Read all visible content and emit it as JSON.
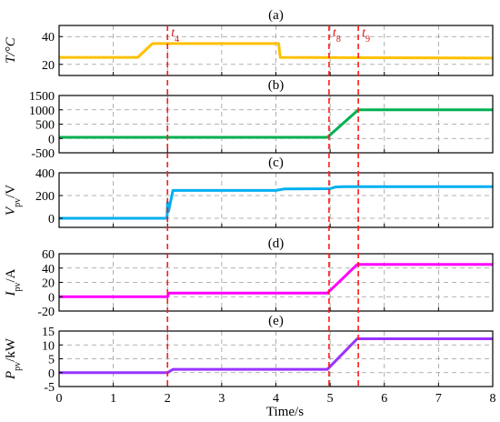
{
  "chart_data": {
    "type": "line",
    "xlabel": "Time/s",
    "xlim": [
      0,
      8
    ],
    "xticks": [
      0,
      1,
      2,
      3,
      4,
      5,
      6,
      7,
      8
    ],
    "vlines": [
      {
        "x": 2.0,
        "label": "t",
        "sub": "4"
      },
      {
        "x": 4.98,
        "label": "t",
        "sub": "8"
      },
      {
        "x": 5.52,
        "label": "t",
        "sub": "9"
      }
    ],
    "panels": [
      {
        "title": "(a)",
        "ylabel": "T/°C",
        "ylim": [
          12,
          48
        ],
        "yticks": [
          20,
          40
        ],
        "color": "#ffc000",
        "series": {
          "x": [
            0,
            1.45,
            1.72,
            4.05,
            4.08,
            8.0
          ],
          "y": [
            25,
            25,
            35,
            35,
            25,
            24.5
          ]
        }
      },
      {
        "title": "(b)",
        "ylabel": "",
        "ylim": [
          -500,
          1500
        ],
        "yticks": [
          -500,
          0,
          500,
          1000,
          1500
        ],
        "color": "#00b050",
        "series": {
          "x": [
            0,
            4.95,
            5.52,
            8.0
          ],
          "y": [
            40,
            40,
            1000,
            1000
          ]
        }
      },
      {
        "title": "(c)",
        "ylabel": "V",
        "ylabel_sub": "pv",
        "ylabel_unit": "/V",
        "ylim": [
          -80,
          400
        ],
        "yticks": [
          0,
          200,
          400
        ],
        "color": "#00b0f0",
        "series": {
          "x": [
            0,
            1.99,
            2.0,
            2.02,
            2.1,
            4.0,
            4.15,
            5.0,
            5.1,
            5.25,
            8.0
          ],
          "y": [
            0,
            0,
            140,
            60,
            245,
            245,
            258,
            260,
            275,
            278,
            278
          ]
        }
      },
      {
        "title": "(d)",
        "ylabel": "I",
        "ylabel_sub": "pv",
        "ylabel_unit": "/A",
        "ylim": [
          -20,
          60
        ],
        "yticks": [
          -20,
          0,
          20,
          40,
          60
        ],
        "color": "#ff00ff",
        "series": {
          "x": [
            0,
            2.0,
            2.02,
            4.95,
            5.5,
            8.0
          ],
          "y": [
            0,
            0,
            5,
            5,
            45,
            45
          ]
        }
      },
      {
        "title": "(e)",
        "ylabel": "P",
        "ylabel_sub": "pv",
        "ylabel_unit": "/kW",
        "ylim": [
          -5,
          15
        ],
        "yticks": [
          -5,
          0,
          5,
          10,
          15
        ],
        "color": "#9933ff",
        "series": {
          "x": [
            0,
            2.0,
            2.1,
            4.95,
            5.5,
            8.0
          ],
          "y": [
            0,
            0,
            1.2,
            1.2,
            12.2,
            12.2
          ]
        }
      }
    ]
  }
}
